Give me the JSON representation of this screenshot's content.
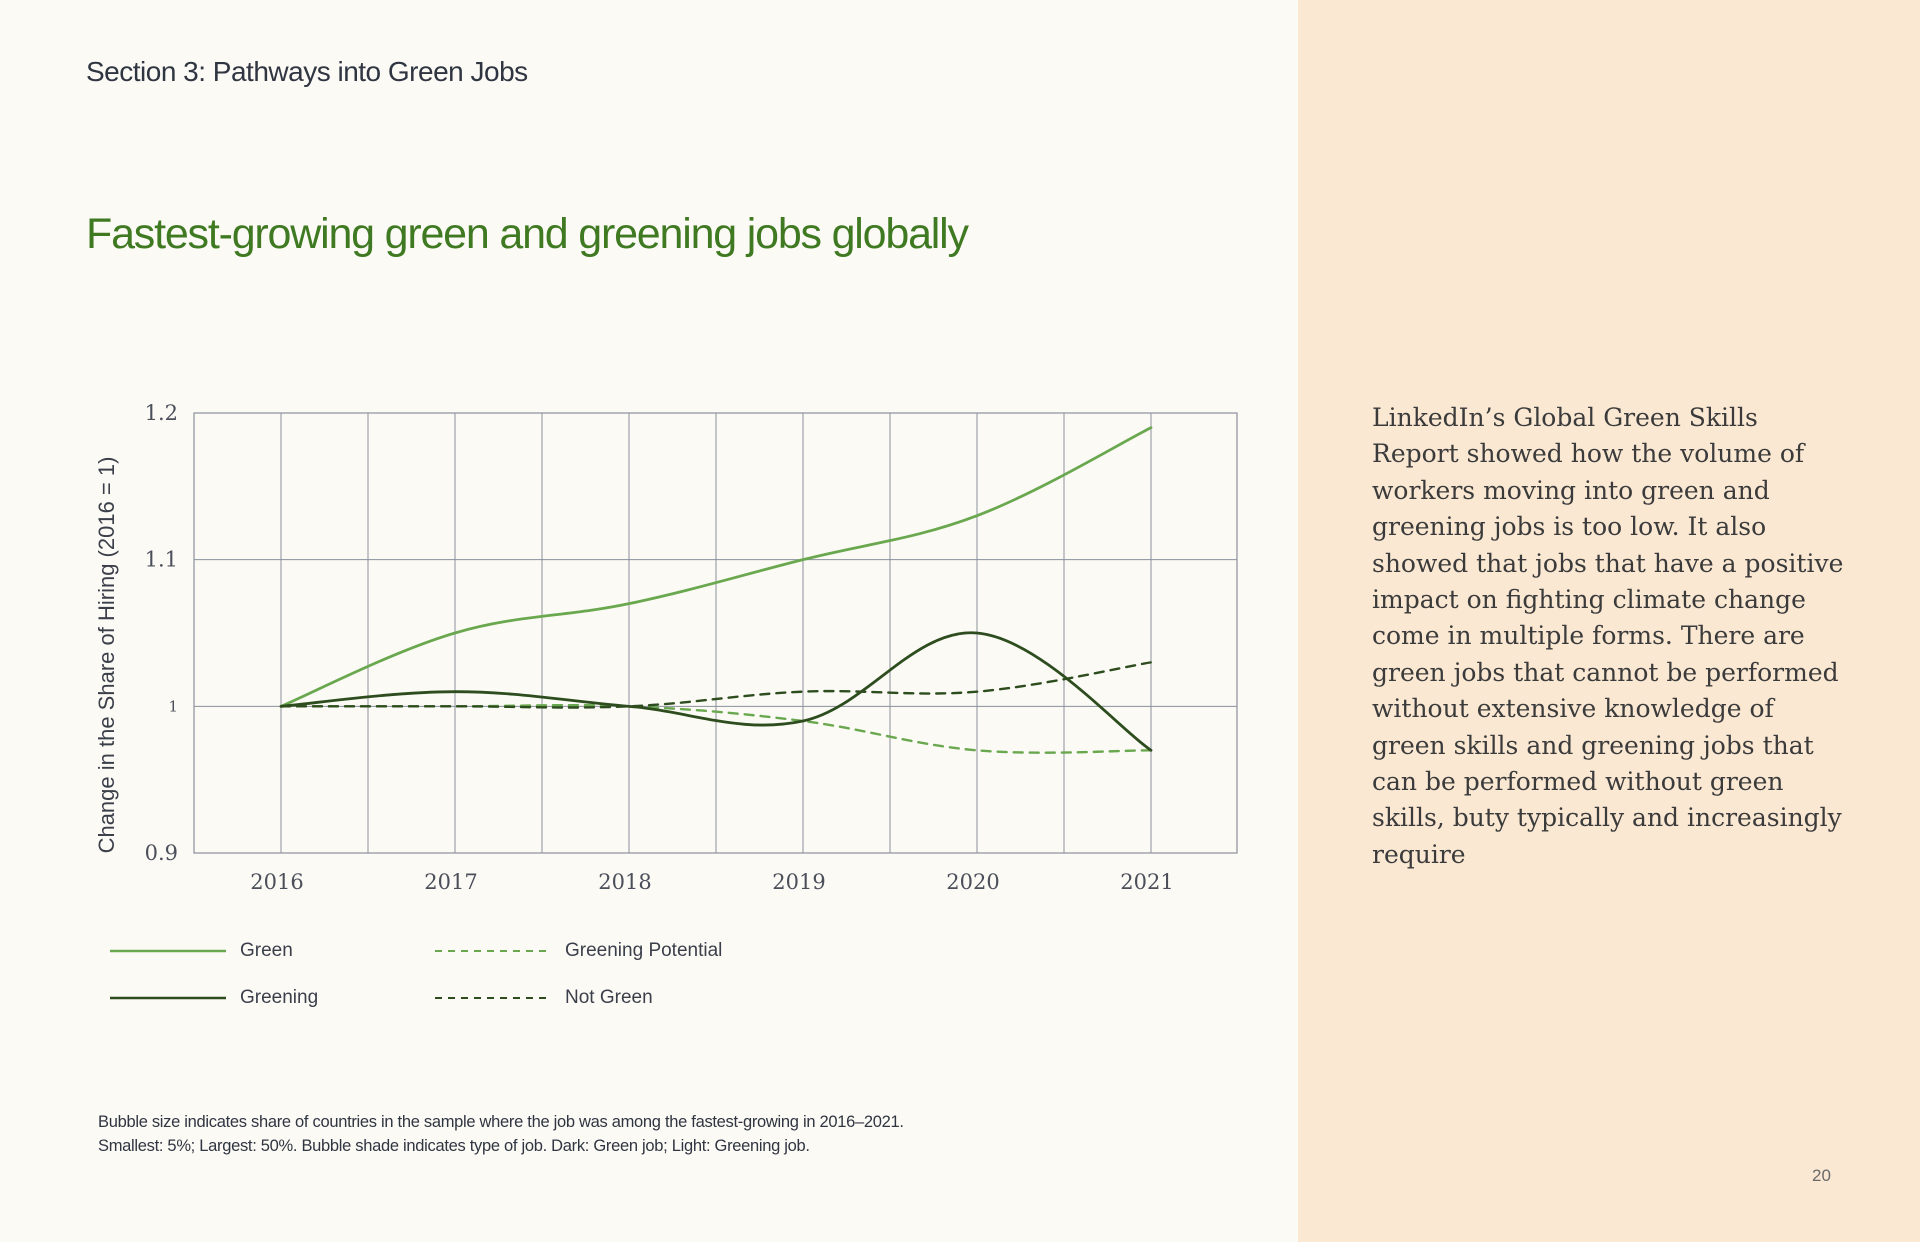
{
  "header": {
    "section_title": "Section 3: Pathways into Green Jobs"
  },
  "chart_data": {
    "type": "line",
    "title": "Fastest-growing green and greening jobs globally",
    "ylabel": "Change in the Share of Hiring (2016 = 1)",
    "xlabel": "",
    "x": [
      2016,
      2017,
      2018,
      2019,
      2020,
      2021
    ],
    "x_tick_labels": [
      "2016",
      "2017",
      "2018",
      "2019",
      "2020",
      "2021"
    ],
    "y_tick_labels": [
      "1.2",
      "1.1",
      "1",
      "0.9"
    ],
    "y_ticks": [
      1.2,
      1.1,
      1.0,
      0.9
    ],
    "ylim": [
      0.9,
      1.2
    ],
    "grid": true,
    "legend_position": "bottom-left",
    "series": [
      {
        "name": "Green",
        "style": "solid",
        "color": "#6aa84f",
        "values": [
          1.0,
          1.05,
          1.07,
          1.1,
          1.13,
          1.19
        ]
      },
      {
        "name": "Greening",
        "style": "solid",
        "color": "#2e4d1f",
        "values": [
          1.0,
          1.01,
          1.0,
          0.99,
          1.05,
          0.97
        ]
      },
      {
        "name": "Greening Potential",
        "style": "dashed",
        "color": "#6aa84f",
        "values": [
          1.0,
          1.0,
          1.0,
          0.99,
          0.97,
          0.97
        ]
      },
      {
        "name": "Not Green",
        "style": "dashed",
        "color": "#2e4d1f",
        "values": [
          1.0,
          1.0,
          1.0,
          1.01,
          1.01,
          1.03
        ]
      }
    ]
  },
  "footnote": {
    "line1": "Bubble size indicates share of countries in the sample where the job was among the fastest-growing in 2016–2021.",
    "line2": "Smallest: 5%; Largest: 50%. Bubble shade indicates type of job. Dark: Green job; Light: Greening job."
  },
  "body_text": "LinkedIn’s Global Green Skills Report showed how the volume of workers moving into green and greening jobs is too low. It also showed that jobs that have a positive impact on fighting climate change come in multiple forms. There are green jobs that cannot be performed without extensive knowledge of green skills and greening jobs that can be performed without green skills, buty typically and increasingly require",
  "page_number": "20",
  "colors": {
    "title_green": "#3f7a22",
    "grid": "#8a909c",
    "right_panel": "#fae8d3"
  }
}
